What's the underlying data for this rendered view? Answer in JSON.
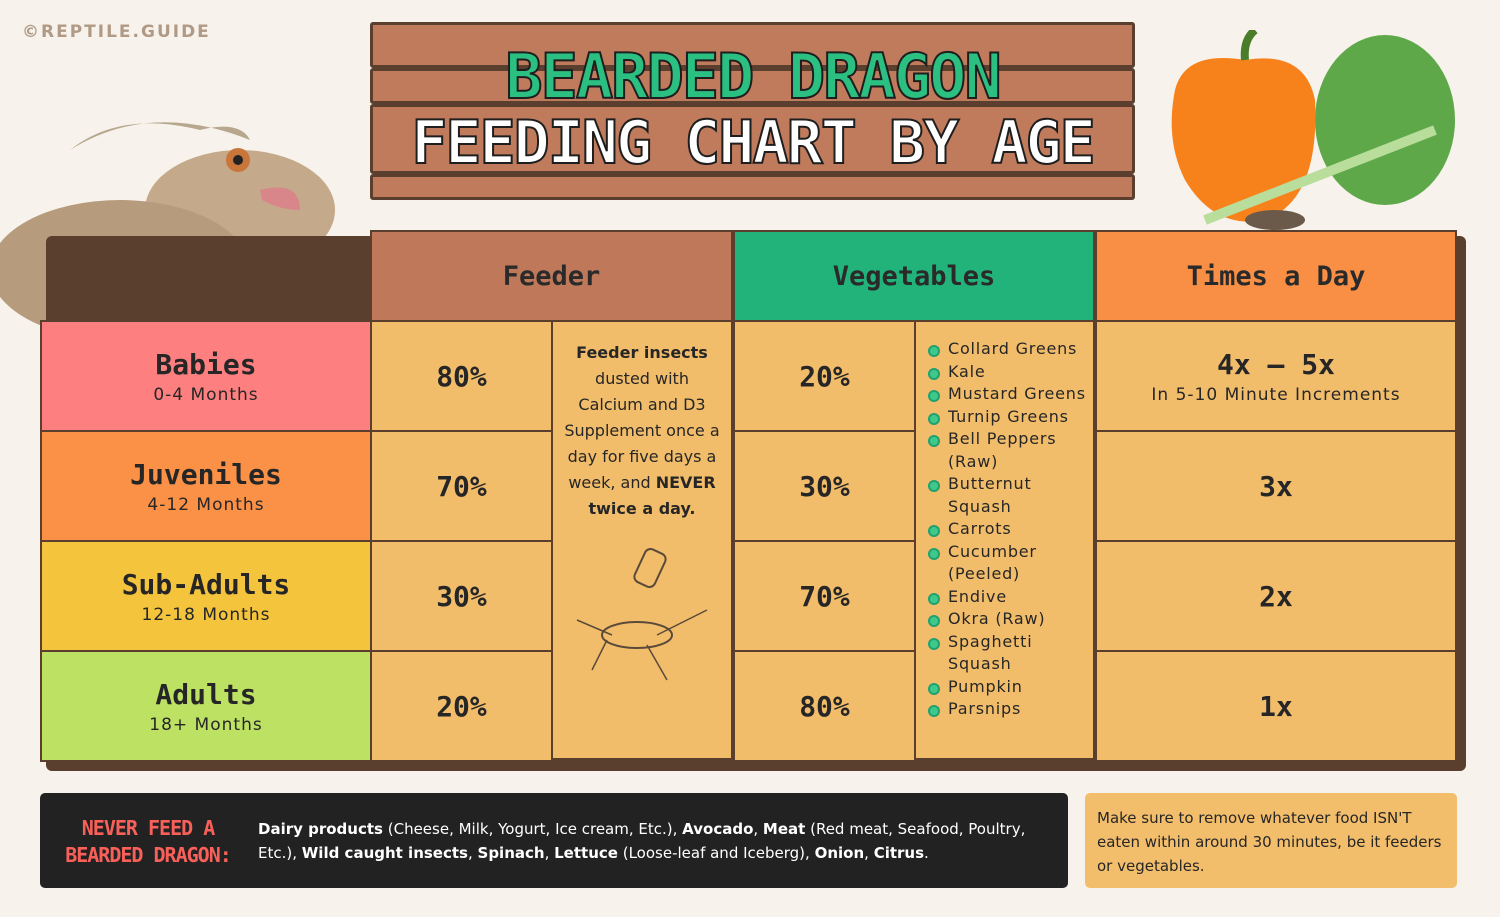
{
  "watermark": "©REPTILE.GUIDE",
  "title": {
    "line1": "BEARDED DRAGON",
    "line2": "FEEDING CHART BY AGE"
  },
  "headers": {
    "feeder": "Feeder",
    "vegetables": "Vegetables",
    "times": "Times a Day"
  },
  "colors": {
    "feeder_header": "#c0785a",
    "vegetables_header": "#22b37a",
    "times_header": "#f98f45",
    "cell": "#f2bd6b",
    "border": "#5a3e2e"
  },
  "rows": [
    {
      "label": "Babies",
      "age": "0-4 Months",
      "feeder": "80%",
      "vegetables": "20%",
      "times": "4x – 5x",
      "times_note": "In 5-10 Minute Increments",
      "color": "#fd7f7f"
    },
    {
      "label": "Juveniles",
      "age": "4-12 Months",
      "feeder": "70%",
      "vegetables": "30%",
      "times": "3x",
      "color": "#fb9147"
    },
    {
      "label": "Sub-Adults",
      "age": "12-18 Months",
      "feeder": "30%",
      "vegetables": "70%",
      "times": "2x",
      "color": "#f4c43c"
    },
    {
      "label": "Adults",
      "age": "18+ Months",
      "feeder": "20%",
      "vegetables": "80%",
      "times": "1x",
      "color": "#bde163"
    }
  ],
  "feeder_note": {
    "b1": "Feeder insects",
    "t1": " dusted with Calcium and D3 Supplement once a day for five days a week, and ",
    "b2": "NEVER twice a day."
  },
  "vegetable_list": [
    "Collard Greens",
    "Kale",
    "Mustard Greens",
    "Turnip Greens",
    "Bell Peppers (Raw)",
    "Butternut Squash",
    "Carrots",
    "Cucumber (Peeled)",
    "Endive",
    "Okra (Raw)",
    "Spaghetti Squash",
    "Pumpkin",
    "Parsnips"
  ],
  "warning": {
    "title": "NEVER FEED A BEARDED DRAGON:",
    "parts": [
      [
        "b",
        "Dairy products"
      ],
      [
        "n",
        " (Cheese, Milk, Yogurt, Ice cream, Etc.), "
      ],
      [
        "b",
        "Avocado"
      ],
      [
        "n",
        ", "
      ],
      [
        "b",
        "Meat"
      ],
      [
        "n",
        " (Red meat, Seafood, Poultry, Etc.), "
      ],
      [
        "b",
        "Wild caught insects"
      ],
      [
        "n",
        ", "
      ],
      [
        "b",
        "Spinach"
      ],
      [
        "n",
        ", "
      ],
      [
        "b",
        "Lettuce"
      ],
      [
        "n",
        " (Loose-leaf and Iceberg), "
      ],
      [
        "b",
        "Onion"
      ],
      [
        "n",
        ", "
      ],
      [
        "b",
        "Citrus"
      ],
      [
        "n",
        "."
      ]
    ]
  },
  "note": "Make sure to remove whatever food ISN'T eaten within around 30 minutes, be it feeders or vegetables."
}
